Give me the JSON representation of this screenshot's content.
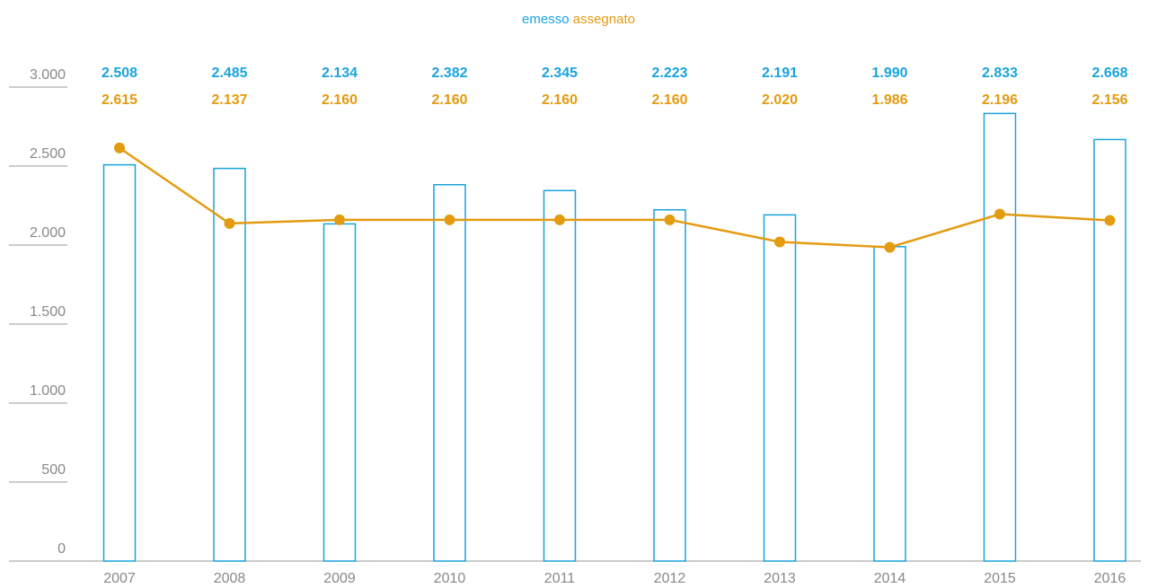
{
  "chart_data": {
    "type": "bar",
    "categories": [
      "2007",
      "2008",
      "2009",
      "2010",
      "2011",
      "2012",
      "2013",
      "2014",
      "2015",
      "2016"
    ],
    "series": [
      {
        "name": "emesso",
        "type": "bar",
        "color": "#1aa3dc",
        "values": [
          2508,
          2485,
          2134,
          2382,
          2345,
          2223,
          2191,
          1990,
          2833,
          2668
        ],
        "value_labels": [
          "2.508",
          "2.485",
          "2.134",
          "2.382",
          "2.345",
          "2.223",
          "2.191",
          "1.990",
          "2.833",
          "2.668"
        ]
      },
      {
        "name": "assegnato",
        "type": "line",
        "color": "#e39b10",
        "values": [
          2615,
          2137,
          2160,
          2160,
          2160,
          2160,
          2020,
          1986,
          2196,
          2156
        ],
        "value_labels": [
          "2.615",
          "2.137",
          "2.160",
          "2.160",
          "2.160",
          "2.160",
          "2.020",
          "1.986",
          "2.196",
          "2.156"
        ]
      }
    ],
    "ylim": [
      0,
      3000
    ],
    "yticks": [
      0,
      500,
      {
        "value": 1000,
        "label": "1.000"
      },
      {
        "value": 1500,
        "label": "1.500"
      },
      {
        "value": 2000,
        "label": "2.000"
      },
      {
        "value": 2500,
        "label": "2.500"
      },
      {
        "value": 3000,
        "label": "3.000"
      }
    ],
    "legend": "top"
  }
}
